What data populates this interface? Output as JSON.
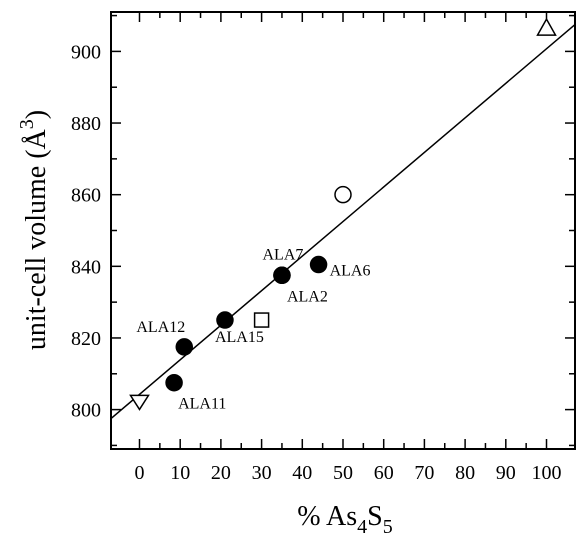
{
  "chart_data": {
    "type": "scatter",
    "xlabel": "% As4S5",
    "ylabel": "unit-cell volume (Å3)",
    "xlim": [
      -7,
      107
    ],
    "ylim": [
      789,
      911
    ],
    "grid": false,
    "xticks": [
      "0",
      "10",
      "20",
      "30",
      "40",
      "50",
      "60",
      "70",
      "80",
      "90",
      "100"
    ],
    "yticks": [
      "800",
      "820",
      "840",
      "860",
      "880",
      "900"
    ],
    "series": [
      {
        "marker": "filled-circle",
        "points": [
          {
            "x": 8.5,
            "y": 807.5,
            "label": "ALA11"
          },
          {
            "x": 11,
            "y": 817.5,
            "label": "ALA12"
          },
          {
            "x": 21,
            "y": 825,
            "label": "ALA15"
          },
          {
            "x": 35,
            "y": 837.5,
            "label": "ALA7"
          },
          {
            "x": 35,
            "y": 837.5,
            "label": "ALA2"
          },
          {
            "x": 44,
            "y": 840.5,
            "label": "ALA6"
          }
        ]
      },
      {
        "marker": "open-square",
        "points": [
          {
            "x": 30,
            "y": 825
          }
        ]
      },
      {
        "marker": "open-circle",
        "points": [
          {
            "x": 50,
            "y": 860
          }
        ]
      },
      {
        "marker": "open-triangle-up",
        "points": [
          {
            "x": 100,
            "y": 906.5
          }
        ]
      },
      {
        "marker": "open-triangle-down",
        "points": [
          {
            "x": 0,
            "y": 802
          }
        ]
      }
    ],
    "fit_line": {
      "x": [
        -7,
        107
      ],
      "y": [
        797.5,
        907.5
      ]
    }
  }
}
